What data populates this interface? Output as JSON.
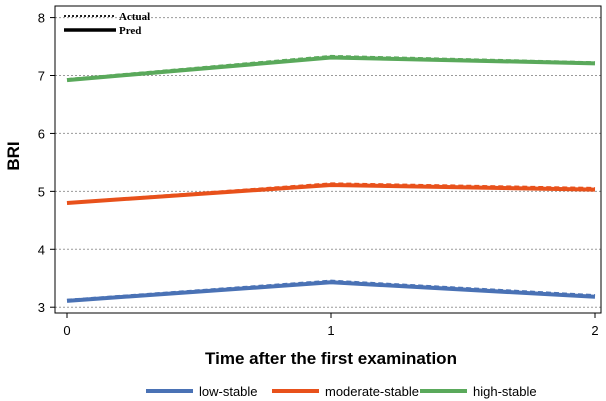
{
  "chart_data": {
    "type": "line",
    "title": "",
    "xlabel": "Time after the first examination",
    "ylabel": "BRI",
    "x": [
      0,
      1,
      2
    ],
    "x_ticks": [
      "0",
      "1",
      "2"
    ],
    "y_ticks": [
      "3",
      "4",
      "5",
      "6",
      "7",
      "8"
    ],
    "xlim": [
      0,
      2
    ],
    "ylim": [
      2.9,
      8.2
    ],
    "grid": "horizontal dotted",
    "style_legend": {
      "actual_label": "Actual",
      "pred_label": "Pred",
      "position": "top-left"
    },
    "legend_position": "bottom",
    "series": [
      {
        "name": "low-stable",
        "color": "#4a72b5",
        "actual": [
          3.12,
          3.45,
          3.2
        ],
        "pred": [
          3.11,
          3.43,
          3.18
        ]
      },
      {
        "name": "moderate-stable",
        "color": "#e8511b",
        "actual": [
          4.8,
          5.13,
          5.05
        ],
        "pred": [
          4.8,
          5.11,
          5.03
        ]
      },
      {
        "name": "high-stable",
        "color": "#5aa95b",
        "actual": [
          6.93,
          7.33,
          7.22
        ],
        "pred": [
          6.92,
          7.31,
          7.21
        ]
      }
    ]
  }
}
